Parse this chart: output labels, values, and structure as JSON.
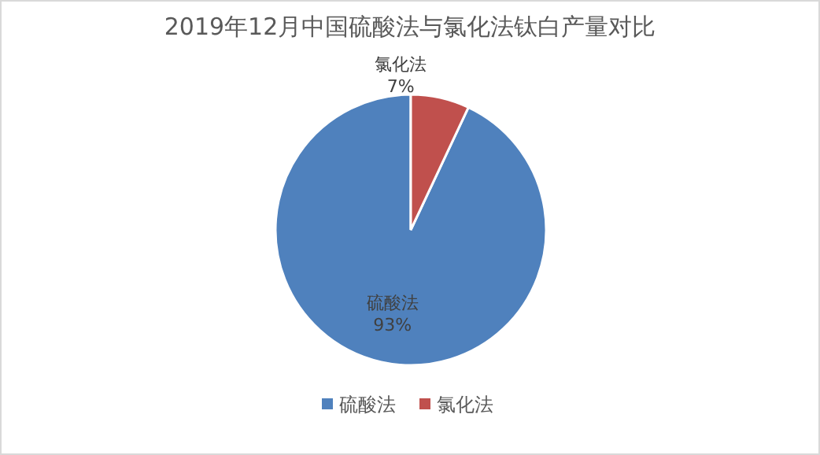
{
  "chart_data": {
    "type": "pie",
    "title": "2019年12月中国硫酸法与氯化法钛白产量对比",
    "categories": [
      "硫酸法",
      "氯化法"
    ],
    "values": [
      93,
      7
    ],
    "colors": [
      "#4f81bd",
      "#c0504d"
    ],
    "value_labels": [
      "93%",
      "7%"
    ],
    "legend": "bottom"
  }
}
